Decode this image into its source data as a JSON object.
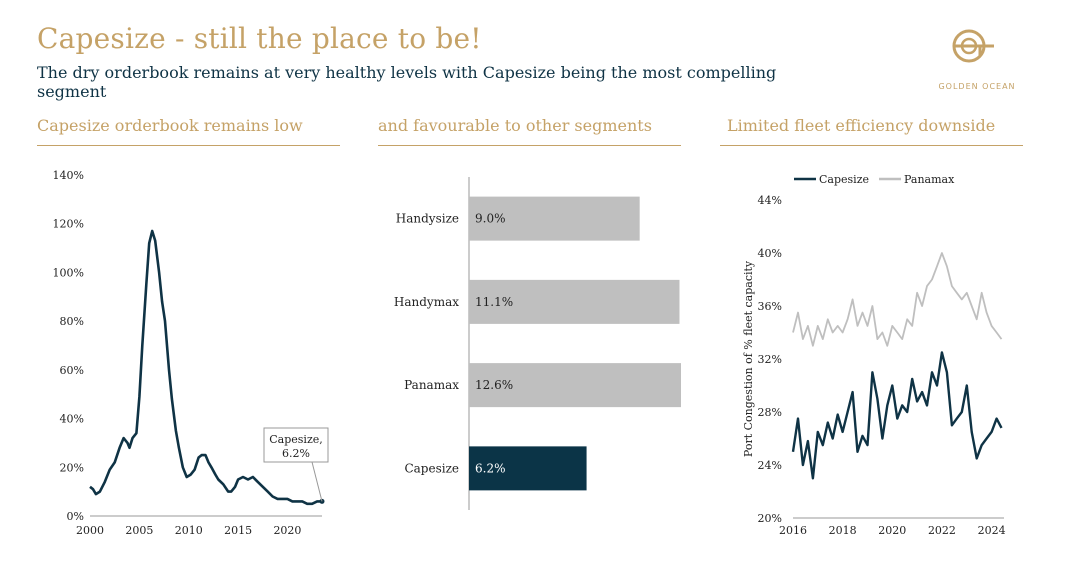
{
  "title": "Capesize - still the place to be!",
  "subtitle": "The dry orderbook remains at very healthy levels with Capesize being the most compelling segment",
  "logo": {
    "text": "GOLDEN OCEAN",
    "icon": "golden-ocean-logo-icon"
  },
  "colors": {
    "gold": "#c5a267",
    "navy": "#0f3345",
    "grey": "#bfbfbf",
    "bar_navy": "#0b3447"
  },
  "panels": {
    "left_title": "Capesize orderbook remains low",
    "middle_title": "and favourable to other segments",
    "right_title": "Limited fleet efficiency downside"
  },
  "chart_data": [
    {
      "type": "line",
      "title": "Capesize orderbook remains low",
      "ylim": [
        0,
        140
      ],
      "yticks": [
        "0%",
        "20%",
        "40%",
        "60%",
        "80%",
        "100%",
        "120%",
        "140%"
      ],
      "xticks": [
        "2000",
        "2005",
        "2010",
        "2015",
        "2020"
      ],
      "xlim": [
        2000,
        2023.5
      ],
      "annotation": {
        "line1": "Capesize,",
        "line2": "6.2%"
      },
      "series": [
        {
          "x": [
            2000.0,
            2000.3,
            2000.6,
            2001.0,
            2001.5,
            2002.0,
            2002.5,
            2003.0,
            2003.4,
            2003.8,
            2004.0,
            2004.3,
            2004.7,
            2005.0,
            2005.3,
            2005.7,
            2006.0,
            2006.3,
            2006.6,
            2007.0,
            2007.3,
            2007.6,
            2007.8,
            2008.0,
            2008.3,
            2008.7,
            2009.0,
            2009.4,
            2009.8,
            2010.2,
            2010.6,
            2011.0,
            2011.3,
            2011.7,
            2012.0,
            2012.3,
            2012.7,
            2013.0,
            2013.5,
            2014.0,
            2014.3,
            2014.7,
            2015.0,
            2015.5,
            2016.0,
            2016.5,
            2017.0,
            2017.5,
            2018.0,
            2018.5,
            2019.0,
            2019.5,
            2020.0,
            2020.5,
            2021.0,
            2021.5,
            2022.0,
            2022.5,
            2023.0,
            2023.3,
            2023.5
          ],
          "y": [
            12,
            11,
            9,
            10,
            14,
            19,
            22,
            28,
            32,
            30,
            28,
            32,
            34,
            49,
            70,
            95,
            112,
            117,
            113,
            100,
            88,
            80,
            70,
            60,
            48,
            35,
            28,
            20,
            16,
            17,
            19,
            24,
            25,
            25,
            22,
            20,
            17,
            15,
            13,
            10,
            10,
            12,
            15,
            16,
            15,
            16,
            14,
            12,
            10,
            8,
            7,
            7,
            7,
            6,
            6,
            6,
            5,
            5,
            6,
            6,
            6
          ]
        }
      ]
    },
    {
      "type": "bar",
      "title": "and favourable to other segments",
      "orientation": "horizontal",
      "categories": [
        "Handysize",
        "Handymax",
        "Panamax",
        "Capesize"
      ],
      "values": [
        9.0,
        11.1,
        12.6,
        6.2
      ],
      "labels": [
        "9.0%",
        "11.1%",
        "12.6%",
        "6.2%"
      ],
      "xlim": [
        0,
        13.5
      ],
      "highlight": "Capesize"
    },
    {
      "type": "line",
      "title": "Limited fleet efficiency downside",
      "ylabel": "Port Congestion of % fleet capacity",
      "ylim": [
        20,
        44
      ],
      "yticks": [
        "20%",
        "24%",
        "28%",
        "32%",
        "36%",
        "40%",
        "44%"
      ],
      "xticks": [
        "2016",
        "2018",
        "2020",
        "2022",
        "2024"
      ],
      "xlim": [
        2016,
        2024.5
      ],
      "legend": "top-left",
      "series": [
        {
          "name": "Capesize",
          "x": [
            2016.0,
            2016.2,
            2016.4,
            2016.6,
            2016.8,
            2017.0,
            2017.2,
            2017.4,
            2017.6,
            2017.8,
            2018.0,
            2018.2,
            2018.4,
            2018.6,
            2018.8,
            2019.0,
            2019.2,
            2019.4,
            2019.6,
            2019.8,
            2020.0,
            2020.2,
            2020.4,
            2020.6,
            2020.8,
            2021.0,
            2021.2,
            2021.4,
            2021.6,
            2021.8,
            2022.0,
            2022.2,
            2022.4,
            2022.6,
            2022.8,
            2023.0,
            2023.2,
            2023.4,
            2023.6,
            2023.8,
            2024.0,
            2024.2,
            2024.4
          ],
          "y": [
            25.0,
            27.5,
            24.0,
            25.8,
            23.0,
            26.5,
            25.5,
            27.2,
            26.0,
            27.8,
            26.5,
            28.0,
            29.5,
            25.0,
            26.2,
            25.5,
            31.0,
            29.0,
            26.0,
            28.5,
            30.0,
            27.5,
            28.5,
            28.0,
            30.5,
            28.8,
            29.5,
            28.5,
            31.0,
            30.0,
            32.5,
            31.0,
            27.0,
            27.5,
            28.0,
            30.0,
            26.5,
            24.5,
            25.5,
            26.0,
            26.5,
            27.5,
            26.8
          ]
        },
        {
          "name": "Panamax",
          "x": [
            2016.0,
            2016.2,
            2016.4,
            2016.6,
            2016.8,
            2017.0,
            2017.2,
            2017.4,
            2017.6,
            2017.8,
            2018.0,
            2018.2,
            2018.4,
            2018.6,
            2018.8,
            2019.0,
            2019.2,
            2019.4,
            2019.6,
            2019.8,
            2020.0,
            2020.2,
            2020.4,
            2020.6,
            2020.8,
            2021.0,
            2021.2,
            2021.4,
            2021.6,
            2021.8,
            2022.0,
            2022.2,
            2022.4,
            2022.6,
            2022.8,
            2023.0,
            2023.2,
            2023.4,
            2023.6,
            2023.8,
            2024.0,
            2024.2,
            2024.4
          ],
          "y": [
            34.0,
            35.5,
            33.5,
            34.5,
            33.0,
            34.5,
            33.5,
            35.0,
            34.0,
            34.5,
            34.0,
            35.0,
            36.5,
            34.5,
            35.5,
            34.5,
            36.0,
            33.5,
            34.0,
            33.0,
            34.5,
            34.0,
            33.5,
            35.0,
            34.5,
            37.0,
            36.0,
            37.5,
            38.0,
            39.0,
            40.0,
            39.0,
            37.5,
            37.0,
            36.5,
            37.0,
            36.0,
            35.0,
            37.0,
            35.5,
            34.5,
            34.0,
            33.5
          ]
        }
      ]
    }
  ]
}
